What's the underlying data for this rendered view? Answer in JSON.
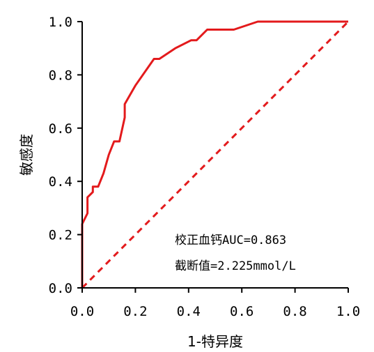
{
  "chart_data": {
    "type": "line",
    "xlabel": "1-特异度",
    "ylabel": "敏感度",
    "xlim": [
      0.0,
      1.0
    ],
    "ylim": [
      0.0,
      1.0
    ],
    "xticks": [
      "0.0",
      "0.2",
      "0.4",
      "0.6",
      "0.8",
      "1.0"
    ],
    "yticks": [
      "0.0",
      "0.2",
      "0.4",
      "0.6",
      "0.8",
      "1.0"
    ],
    "grid": false,
    "annotations": [
      "校正血钙AUC=0.863",
      "截断值=2.225mmol/L"
    ],
    "colors": {
      "roc": "#e31a1c",
      "reference": "#e31a1c",
      "axis": "#000000"
    },
    "series": [
      {
        "style": "solid",
        "x": [
          0.0,
          0.0,
          0.0,
          0.02,
          0.02,
          0.04,
          0.04,
          0.06,
          0.06,
          0.08,
          0.1,
          0.12,
          0.14,
          0.16,
          0.16,
          0.2,
          0.27,
          0.29,
          0.35,
          0.41,
          0.43,
          0.47,
          0.57,
          0.66,
          1.0
        ],
        "y": [
          0.0,
          0.21,
          0.24,
          0.28,
          0.34,
          0.36,
          0.38,
          0.38,
          0.38,
          0.43,
          0.5,
          0.55,
          0.55,
          0.64,
          0.69,
          0.76,
          0.86,
          0.86,
          0.9,
          0.93,
          0.93,
          0.97,
          0.97,
          1.0,
          1.0
        ]
      },
      {
        "style": "dashed",
        "x": [
          0.0,
          1.0
        ],
        "y": [
          0.0,
          1.0
        ]
      }
    ]
  }
}
